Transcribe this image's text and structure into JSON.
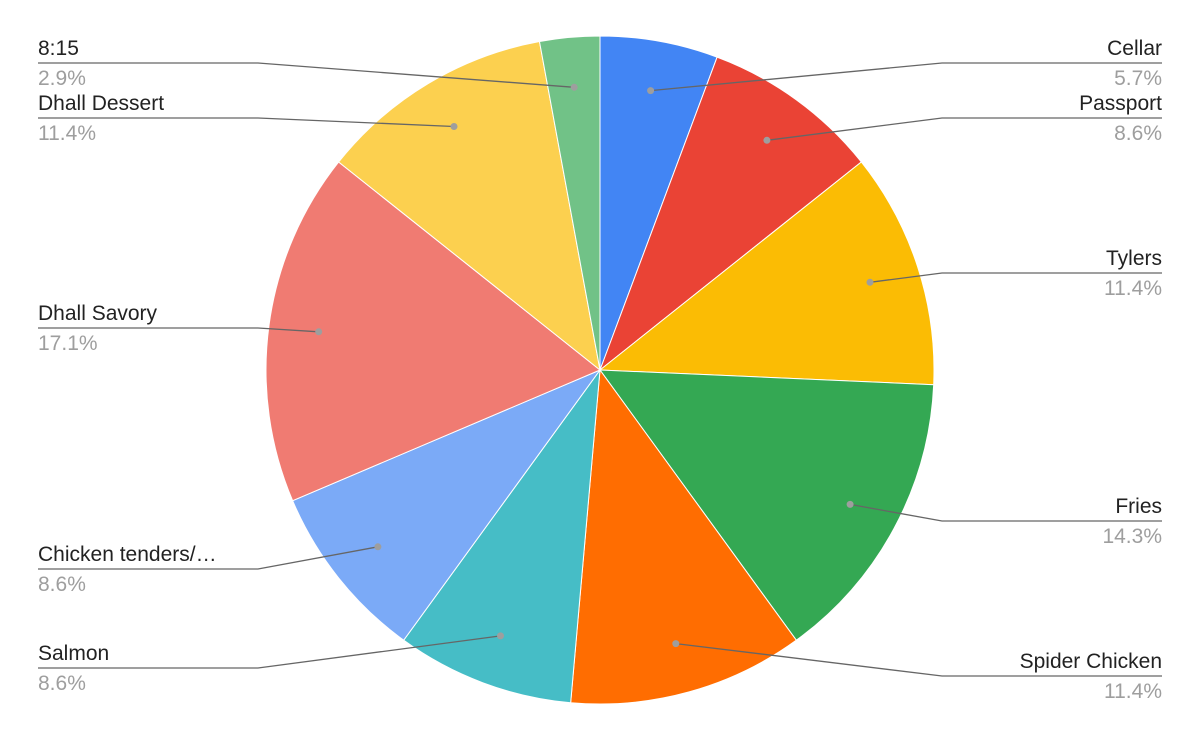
{
  "chart_data": {
    "type": "pie",
    "title": "",
    "slices": [
      {
        "label": "Cellar",
        "value": 5.7,
        "pct_label": "5.7%",
        "color": "#4285f4"
      },
      {
        "label": "Passport",
        "value": 8.6,
        "pct_label": "8.6%",
        "color": "#ea4335"
      },
      {
        "label": "Tylers",
        "value": 11.4,
        "pct_label": "11.4%",
        "color": "#fbbc04"
      },
      {
        "label": "Fries",
        "value": 14.3,
        "pct_label": "14.3%",
        "color": "#34a853"
      },
      {
        "label": "Spider Chicken",
        "value": 11.4,
        "pct_label": "11.4%",
        "color": "#ff6d01"
      },
      {
        "label": "Salmon",
        "value": 8.6,
        "pct_label": "8.6%",
        "color": "#46bdc6"
      },
      {
        "label": "Chicken tenders/…",
        "value": 8.6,
        "pct_label": "8.6%",
        "color": "#7baaf7"
      },
      {
        "label": "Dhall Savory",
        "value": 17.1,
        "pct_label": "17.1%",
        "color": "#f07b72"
      },
      {
        "label": "Dhall Dessert",
        "value": 11.4,
        "pct_label": "11.4%",
        "color": "#fcd04f"
      },
      {
        "label": "8:15",
        "value": 2.9,
        "pct_label": "2.9%",
        "color": "#71c287"
      }
    ],
    "start_angle": "top",
    "direction": "clockwise",
    "legend": "none",
    "labels": "outside with leader lines"
  }
}
